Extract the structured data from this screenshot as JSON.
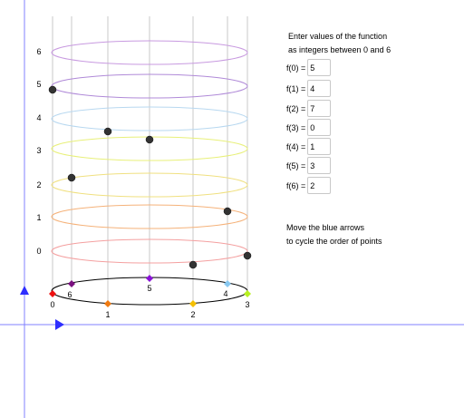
{
  "instructions": {
    "line1": "Enter values of the function",
    "line2": "as integers between 0 and 6"
  },
  "hint": {
    "line1": "Move the blue arrows",
    "line2": "to cycle the order of points"
  },
  "function_inputs": [
    {
      "label": "f(0) =",
      "value": "5"
    },
    {
      "label": "f(1) =",
      "value": "4"
    },
    {
      "label": "f(2) =",
      "value": "7"
    },
    {
      "label": "f(3) =",
      "value": "0"
    },
    {
      "label": "f(4) =",
      "value": "1"
    },
    {
      "label": "f(5) =",
      "value": "3"
    },
    {
      "label": "f(6) =",
      "value": "2"
    }
  ],
  "level_labels": [
    "0",
    "1",
    "2",
    "3",
    "4",
    "5",
    "6"
  ],
  "ring_colors": [
    "#f4a0a0",
    "#f5b27a",
    "#f0e080",
    "#e8f07a",
    "#b8d8f0",
    "#b08ad8",
    "#c89ae0"
  ],
  "base_points": [
    {
      "label": "0",
      "color": "#ee1111"
    },
    {
      "label": "1",
      "color": "#f07a10"
    },
    {
      "label": "2",
      "color": "#f5c000"
    },
    {
      "label": "3",
      "color": "#b8f020"
    },
    {
      "label": "4",
      "color": "#88c8f0"
    },
    {
      "label": "5",
      "color": "#8a12d8"
    },
    {
      "label": "6",
      "color": "#7a1080"
    }
  ],
  "colors": {
    "arrow": "#2e2eff",
    "axis": "#8080ff",
    "point": "#333333"
  },
  "icons": {
    "up_arrow": "triangle-up-icon",
    "right_arrow": "triangle-right-icon"
  }
}
